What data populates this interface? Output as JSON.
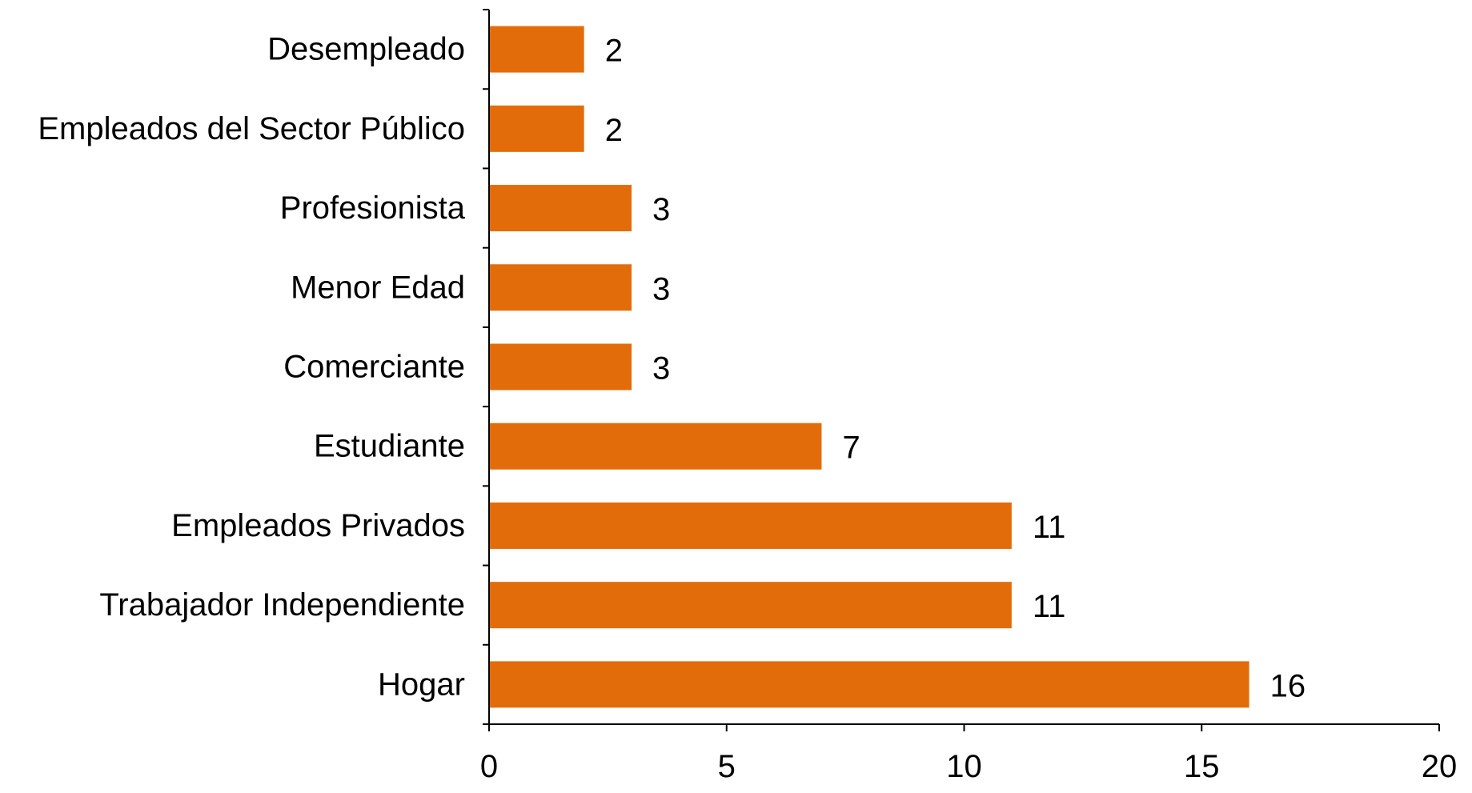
{
  "chart_data": {
    "type": "bar",
    "orientation": "horizontal",
    "title": "",
    "xlabel": "",
    "ylabel": "",
    "categories": [
      "Desempleado",
      "Empleados del Sector Público",
      "Profesionista",
      "Menor Edad",
      "Comerciante",
      "Estudiante",
      "Empleados Privados",
      "Trabajador Independiente",
      "Hogar"
    ],
    "values": [
      2,
      2,
      3,
      3,
      3,
      7,
      11,
      11,
      16
    ],
    "data_labels": [
      "2",
      "2",
      "3",
      "3",
      "3",
      "7",
      "11",
      "11",
      "16"
    ],
    "xlim": [
      0,
      20
    ],
    "x_ticks": [
      0,
      5,
      10,
      15,
      20
    ],
    "x_tick_labels": [
      "0",
      "5",
      "10",
      "15",
      "20"
    ],
    "grid": false,
    "legend": "none",
    "bar_color": "#E36C0A"
  }
}
